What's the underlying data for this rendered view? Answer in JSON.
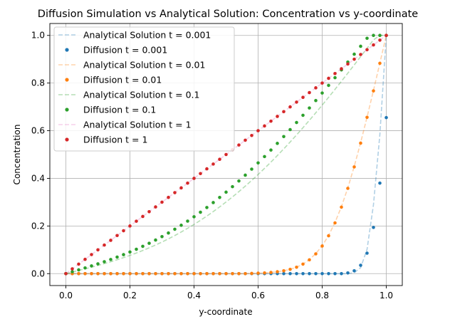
{
  "chart_data": {
    "type": "line",
    "title": "Diffusion Simulation vs Analytical Solution: Concentration vs y-coordinate",
    "xlabel": "y-coordinate",
    "ylabel": "Concentration",
    "xlim": [
      -0.05,
      1.05
    ],
    "ylim": [
      -0.05,
      1.05
    ],
    "x_ticks": [
      0.0,
      0.2,
      0.4,
      0.6,
      0.8,
      1.0
    ],
    "y_ticks": [
      0.0,
      0.2,
      0.4,
      0.6,
      0.8,
      1.0
    ],
    "x_tick_labels": [
      "0.0",
      "0.2",
      "0.4",
      "0.6",
      "0.8",
      "1.0"
    ],
    "y_tick_labels": [
      "0.0",
      "0.2",
      "0.4",
      "0.6",
      "0.8",
      "1.0"
    ],
    "grid": true,
    "legend_position": "top-left",
    "colors": {
      "blue": "#1f77b4",
      "orange": "#ff7f0e",
      "green": "#2ca02c",
      "red": "#d62728"
    },
    "x": [
      0.0,
      0.02,
      0.04,
      0.06,
      0.08,
      0.1,
      0.12,
      0.14,
      0.16,
      0.18,
      0.2,
      0.22,
      0.24,
      0.26,
      0.28,
      0.3,
      0.32,
      0.34,
      0.36,
      0.38,
      0.4,
      0.42,
      0.44,
      0.46,
      0.48,
      0.5,
      0.52,
      0.54,
      0.56,
      0.58,
      0.6,
      0.62,
      0.64,
      0.66,
      0.68,
      0.7,
      0.72,
      0.74,
      0.76,
      0.78,
      0.8,
      0.82,
      0.84,
      0.86,
      0.88,
      0.9,
      0.92,
      0.94,
      0.96,
      0.98,
      1.0
    ],
    "series": [
      {
        "name": "Analytical Solution t = 0.001",
        "kind": "line",
        "color": "#1f77b4",
        "values": [
          0,
          0,
          0,
          0,
          0,
          0,
          0,
          0,
          0,
          0,
          0,
          0,
          0,
          0,
          0,
          0,
          0,
          0,
          0,
          0,
          0,
          0,
          0,
          0,
          0,
          0,
          0,
          0,
          0,
          0,
          0,
          0,
          0,
          0,
          0,
          0,
          0,
          0,
          0,
          0,
          0,
          0,
          0,
          0,
          0,
          0.004,
          0.025,
          0.102,
          0.289,
          0.584,
          1.0
        ]
      },
      {
        "name": "Diffusion t = 0.001",
        "kind": "scatter",
        "color": "#1f77b4",
        "values": [
          0,
          0,
          0,
          0,
          0,
          0,
          0,
          0,
          0,
          0,
          0,
          0,
          0,
          0,
          0,
          0,
          0,
          0,
          0,
          0,
          0,
          0,
          0,
          0,
          0,
          0,
          0,
          0,
          0,
          0,
          0,
          0,
          0,
          0,
          0,
          0,
          0,
          0,
          0,
          0,
          0,
          0,
          0,
          0,
          0.003,
          0.012,
          0.035,
          0.086,
          0.194,
          0.38,
          0.655
        ]
      },
      {
        "name": "Analytical Solution t = 0.01",
        "kind": "line",
        "color": "#ff7f0e",
        "values": [
          0,
          0,
          0,
          0,
          0,
          0,
          0,
          0,
          0,
          0,
          0,
          0,
          0,
          0,
          0,
          0,
          0,
          0,
          0,
          0,
          0,
          0,
          0,
          0,
          0,
          0,
          0,
          0,
          0,
          0.001,
          0.002,
          0.003,
          0.005,
          0.008,
          0.012,
          0.018,
          0.027,
          0.04,
          0.059,
          0.084,
          0.117,
          0.16,
          0.215,
          0.281,
          0.36,
          0.45,
          0.55,
          0.657,
          0.769,
          0.884,
          1.0
        ]
      },
      {
        "name": "Diffusion t = 0.01",
        "kind": "scatter",
        "color": "#ff7f0e",
        "values": [
          0,
          0,
          0,
          0,
          0,
          0,
          0,
          0,
          0,
          0,
          0,
          0,
          0,
          0,
          0,
          0,
          0,
          0,
          0,
          0,
          0,
          0,
          0,
          0,
          0,
          0,
          0,
          0,
          0,
          0.001,
          0.002,
          0.003,
          0.005,
          0.008,
          0.012,
          0.018,
          0.027,
          0.04,
          0.058,
          0.083,
          0.116,
          0.159,
          0.213,
          0.279,
          0.358,
          0.448,
          0.548,
          0.656,
          0.767,
          0.883,
          1.0
        ]
      },
      {
        "name": "Analytical Solution t = 0.1",
        "kind": "line",
        "color": "#2ca02c",
        "values": [
          0,
          0.0066,
          0.0133,
          0.0201,
          0.0271,
          0.0344,
          0.042,
          0.0499,
          0.0583,
          0.0672,
          0.0766,
          0.0865,
          0.0971,
          0.1083,
          0.1202,
          0.1327,
          0.146,
          0.16,
          0.1747,
          0.1903,
          0.2066,
          0.2237,
          0.2417,
          0.2605,
          0.2802,
          0.3007,
          0.322,
          0.3443,
          0.3674,
          0.3913,
          0.4161,
          0.4418,
          0.4683,
          0.4956,
          0.5237,
          0.5526,
          0.5822,
          0.6125,
          0.6435,
          0.6752,
          0.7074,
          0.7403,
          0.7736,
          0.8074,
          0.8416,
          0.8761,
          0.911,
          0.946,
          0.9813,
          1.0,
          1.0
        ]
      },
      {
        "name": "Diffusion t = 0.1",
        "kind": "scatter",
        "color": "#2ca02c",
        "values": [
          0,
          0.0079,
          0.0159,
          0.024,
          0.0324,
          0.041,
          0.0501,
          0.0595,
          0.0694,
          0.0798,
          0.0908,
          0.1024,
          0.1146,
          0.1275,
          0.1411,
          0.1554,
          0.1705,
          0.1864,
          0.203,
          0.2205,
          0.2387,
          0.2578,
          0.2776,
          0.2983,
          0.3198,
          0.342,
          0.3651,
          0.3889,
          0.4134,
          0.4387,
          0.4647,
          0.4914,
          0.5188,
          0.5468,
          0.5754,
          0.6046,
          0.6344,
          0.6646,
          0.6954,
          0.7266,
          0.7582,
          0.7902,
          0.8225,
          0.8552,
          0.8881,
          0.9212,
          0.9545,
          0.988,
          1.0,
          1.0,
          1.0
        ]
      },
      {
        "name": "Analytical Solution t = 1",
        "kind": "line",
        "color": "#e377c2",
        "values": [
          0.0,
          0.02,
          0.04,
          0.06,
          0.08,
          0.1,
          0.12,
          0.14,
          0.16,
          0.18,
          0.2,
          0.22,
          0.24,
          0.26,
          0.28,
          0.3,
          0.32,
          0.34,
          0.36,
          0.38,
          0.4,
          0.42,
          0.44,
          0.46,
          0.48,
          0.5,
          0.52,
          0.54,
          0.56,
          0.58,
          0.6,
          0.62,
          0.64,
          0.66,
          0.68,
          0.7,
          0.72,
          0.74,
          0.76,
          0.78,
          0.8,
          0.82,
          0.84,
          0.86,
          0.88,
          0.9,
          0.92,
          0.94,
          0.96,
          0.98,
          1.0
        ]
      },
      {
        "name": "Diffusion t = 1",
        "kind": "scatter",
        "color": "#d62728",
        "values": [
          0.0,
          0.02,
          0.04,
          0.06,
          0.08,
          0.1,
          0.12,
          0.14,
          0.16,
          0.18,
          0.2,
          0.22,
          0.24,
          0.26,
          0.28,
          0.3,
          0.32,
          0.34,
          0.36,
          0.38,
          0.4,
          0.42,
          0.44,
          0.46,
          0.48,
          0.5,
          0.52,
          0.54,
          0.56,
          0.58,
          0.6,
          0.62,
          0.64,
          0.66,
          0.68,
          0.7,
          0.72,
          0.74,
          0.76,
          0.78,
          0.8,
          0.82,
          0.84,
          0.86,
          0.88,
          0.9,
          0.92,
          0.94,
          0.96,
          0.98,
          1.0
        ]
      }
    ]
  }
}
